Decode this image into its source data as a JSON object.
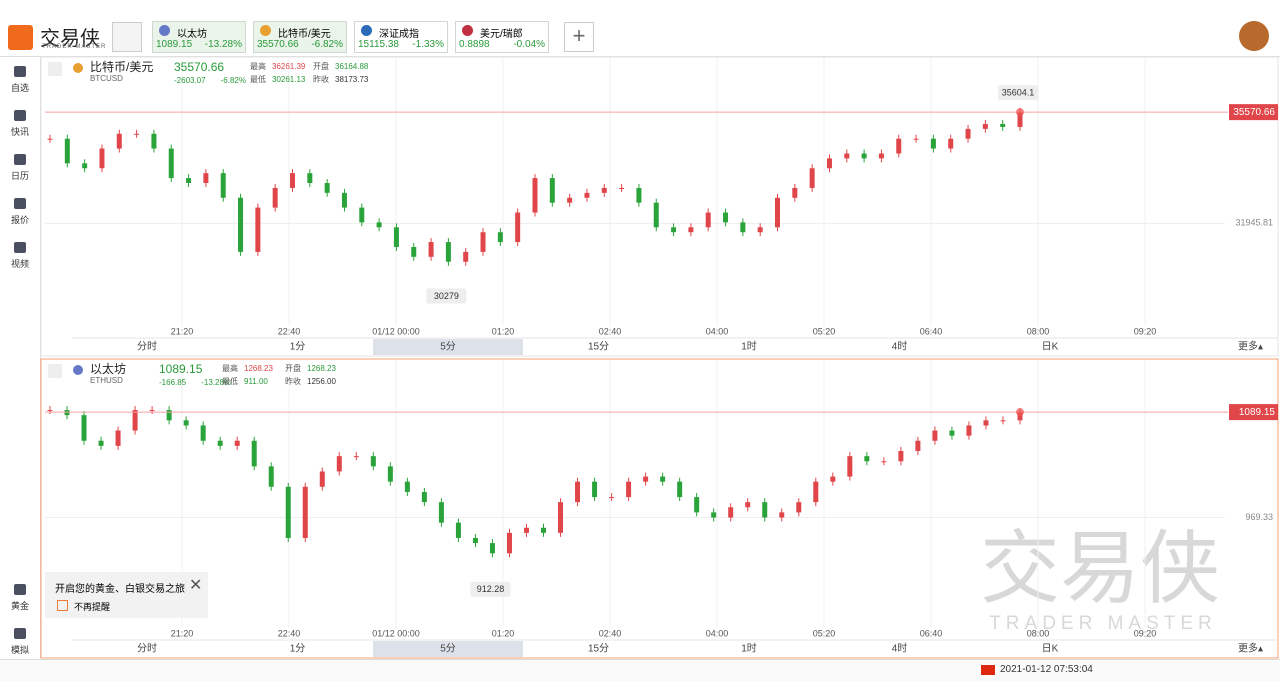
{
  "app": {
    "logo": "交易侠",
    "logo_sub": "TRADER MASTER",
    "watermark": "交易侠",
    "watermark_sub": "TRADER MASTER",
    "tickers": [
      {
        "name": "以太坊",
        "price": "1089.15",
        "pct": "-13.28%"
      },
      {
        "name": "比特币/美元",
        "price": "35570.66",
        "pct": "-6.82%"
      },
      {
        "name": "深证成指",
        "price": "15115.38",
        "pct": "-1.33%"
      },
      {
        "name": "美元/瑞郎",
        "price": "0.8898",
        "pct": "-0.04%"
      }
    ],
    "sidebar": [
      "自选",
      "快讯",
      "日历",
      "报价",
      "视频"
    ],
    "sidebar_bottom": [
      "黄金",
      "模拟"
    ],
    "popup": {
      "text": "开启您的黄金、白银交易之旅",
      "check": "不再提醒"
    },
    "datetime": "2021-01-12 07:53:04"
  },
  "time_labels": [
    "21:20",
    "22:40",
    "01/12 00:00",
    "01:20",
    "02:40",
    "04:00",
    "05:20",
    "06:40",
    "08:00",
    "09:20"
  ],
  "intervals": [
    "分时",
    "1分",
    "5分",
    "15分",
    "1时",
    "4时",
    "日K",
    "更多▴"
  ],
  "active_interval": 2,
  "charts": [
    {
      "type": "candlestick",
      "name": "比特币/美元",
      "code": "BTCUSD",
      "price": "35570.66",
      "change": "-2603.07",
      "change_pct": "-6.82%",
      "high_label": "最高",
      "high": "36261.39",
      "open_label": "开盘",
      "open": "36164.88",
      "low_label": "最低",
      "low": "30261.13",
      "prev_label": "昨收",
      "prev": "38173.73",
      "close": [
        34704,
        33902,
        33742,
        34384,
        34865,
        34865,
        34384,
        33421,
        33261,
        33582,
        32780,
        31016,
        32459,
        33100,
        33582,
        33261,
        32940,
        32459,
        31978,
        31817,
        31176,
        30855,
        31336,
        30694,
        31016,
        31657,
        31336,
        32298,
        33421,
        32619,
        32780,
        32940,
        33100,
        33100,
        32619,
        31817,
        31657,
        31817,
        32298,
        31978,
        31657,
        31817,
        32780,
        33100,
        33742,
        34063,
        34223,
        34063,
        34223,
        34704,
        34704,
        34384,
        34704,
        35025,
        35186,
        35089,
        35570.66
      ],
      "ylim": [
        28600,
        37270
      ],
      "yticks": [
        31945.81
      ],
      "annotations": [
        {
          "value": 35604.1,
          "index": 56
        },
        {
          "value": 30279,
          "index": 23
        }
      ]
    },
    {
      "type": "candlestick",
      "name": "以太坊",
      "code": "ETHUSD",
      "price": "1089.15",
      "change": "-166.85",
      "change_pct": "-13.28%",
      "high_label": "最高",
      "high": "1268.23",
      "open_label": "开盘",
      "open": "1268.23",
      "low_label": "最低",
      "low": "911.00",
      "prev_label": "昨收",
      "prev": "1256.00",
      "close": [
        1091.5,
        1085.7,
        1056.6,
        1050.8,
        1068.2,
        1091.5,
        1091.5,
        1079.8,
        1074.0,
        1056.6,
        1050.8,
        1056.6,
        1027.5,
        1004.3,
        946.1,
        1004.3,
        1021.7,
        1039.1,
        1039.1,
        1027.5,
        1010.1,
        998.4,
        986.8,
        963.5,
        946.1,
        940.3,
        928.7,
        951.9,
        957.7,
        951.9,
        986.8,
        1010.1,
        992.6,
        992.6,
        1010.1,
        1015.9,
        1010.1,
        992.6,
        975.2,
        969.4,
        981.0,
        986.8,
        969.4,
        975.2,
        986.8,
        1010.1,
        1015.9,
        1039.1,
        1033.3,
        1033.3,
        1045.0,
        1056.6,
        1068.2,
        1062.4,
        1074.0,
        1079.8,
        1079.8,
        1089.15
      ],
      "ylim": [
        843.8,
        1146.1
      ],
      "yticks": [
        969.33
      ],
      "annotations": [
        {
          "value": 912.28,
          "index": 26
        }
      ]
    }
  ]
}
